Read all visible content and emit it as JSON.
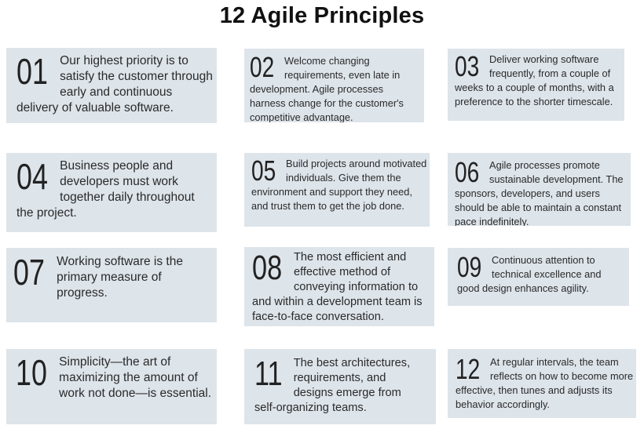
{
  "title": "12 Agile Principles",
  "principles": [
    {
      "number": "01",
      "text": "Our highest priority is to satisfy the customer through early and continuous delivery of valuable software."
    },
    {
      "number": "02",
      "text": "Welcome changing requirements, even late in development. Agile processes harness change for the customer's competitive advantage."
    },
    {
      "number": "03",
      "text": "Deliver working software frequently, from a couple of weeks to a couple of months, with a preference to the shorter timescale."
    },
    {
      "number": "04",
      "text": "Business people and developers must work together daily throughout the project."
    },
    {
      "number": "05",
      "text": "Build projects around motivated individuals. Give them the environment and support they need, and trust them to get the  job done."
    },
    {
      "number": "06",
      "text": "Agile processes promote sustainable development. The sponsors, developers, and users should be able to maintain a constant pace indefinitely."
    },
    {
      "number": "07",
      "text": "Working software is the primary measure of progress."
    },
    {
      "number": "08",
      "text": "The most efficient and effective method of conveying information to and within a development team is face-to-face conversation."
    },
    {
      "number": "09",
      "text": "Continuous attention to technical excellence and good design enhances agility."
    },
    {
      "number": "10",
      "text": "Simplicity—the art of maximizing the amount of work not done—is essential."
    },
    {
      "number": "11",
      "text": "The best architectures, requirements, and designs emerge from self-organizing teams."
    },
    {
      "number": "12",
      "text": "At regular intervals, the team reflects on how to become more effective, then tunes and adjusts its behavior accordingly."
    }
  ],
  "colors": {
    "card_background": "#dde4ea",
    "text": "#2a2a2a",
    "title": "#111111"
  }
}
